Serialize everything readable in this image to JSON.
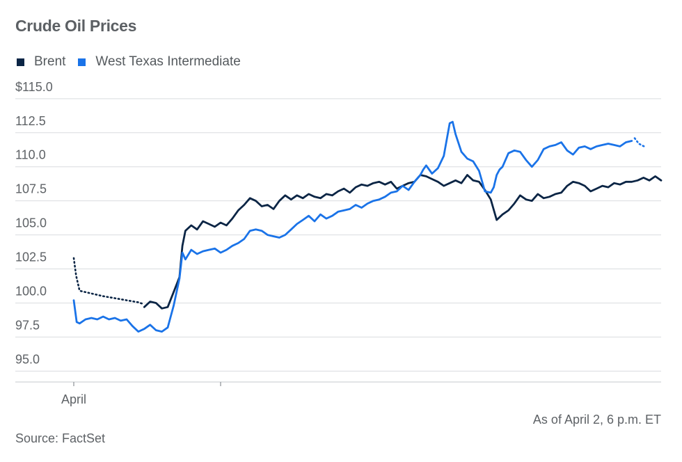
{
  "title": "Crude Oil Prices",
  "legend": [
    {
      "label": "Brent",
      "color": "#0b2545"
    },
    {
      "label": "West Texas Intermediate",
      "color": "#1a73e8"
    }
  ],
  "as_of": "As of April 2, 6 p.m. ET",
  "source": "Source: FactSet",
  "chart_data": {
    "type": "line",
    "title": "Crude Oil Prices",
    "xlabel": "",
    "ylabel": "",
    "ylim": [
      94.2,
      115.3
    ],
    "xlim": [
      0,
      100
    ],
    "grid": true,
    "legend_position": "top-left",
    "y_ticks": [
      {
        "value": 115,
        "label": "$115.0"
      },
      {
        "value": 112.5,
        "label": "112.5"
      },
      {
        "value": 110,
        "label": "110.0"
      },
      {
        "value": 107.5,
        "label": "107.5"
      },
      {
        "value": 105,
        "label": "105.0"
      },
      {
        "value": 102.5,
        "label": "102.5"
      },
      {
        "value": 100,
        "label": "100.0"
      },
      {
        "value": 97.5,
        "label": "97.5"
      },
      {
        "value": 95,
        "label": "95.0"
      }
    ],
    "x_ticks": [
      {
        "x": 0,
        "label": "April"
      },
      {
        "x": 25,
        "label": ""
      }
    ],
    "series": [
      {
        "name": "Brent",
        "color": "#0b2545",
        "dotted_segments": [
          {
            "x": [
              0,
              0.4,
              1,
              3,
              5,
              7,
              9,
              11,
              12
            ],
            "y": [
              103.3,
              102,
              100.9,
              100.7,
              100.5,
              100.35,
              100.2,
              100.05,
              99.9
            ]
          }
        ],
        "x": [
          12,
          13,
          14,
          15,
          16,
          17,
          18,
          18.5,
          19,
          20,
          21,
          22,
          23,
          24,
          25,
          26,
          27,
          28,
          29,
          30,
          31,
          32,
          33,
          34,
          35,
          36,
          37,
          38,
          39,
          40,
          41,
          42,
          43,
          44,
          45,
          46,
          47,
          48,
          49,
          50,
          51,
          52,
          53,
          54,
          55,
          56,
          57,
          58,
          59,
          60,
          61,
          62,
          63,
          64,
          65,
          66,
          67,
          68,
          69,
          70,
          71,
          72,
          73,
          74,
          75,
          76,
          77,
          78,
          79,
          80,
          81,
          82,
          83,
          84,
          85,
          86,
          87,
          88,
          89,
          90,
          91,
          92,
          93,
          94,
          95,
          96,
          97,
          98,
          99,
          100
        ],
        "y": [
          99.7,
          100.1,
          100,
          99.6,
          99.7,
          100.8,
          101.9,
          104.2,
          105.3,
          105.7,
          105.4,
          106,
          105.8,
          105.6,
          105.9,
          105.7,
          106.2,
          106.8,
          107.2,
          107.7,
          107.5,
          107.1,
          107.2,
          106.9,
          107.5,
          107.9,
          107.6,
          107.9,
          107.7,
          108,
          107.8,
          107.7,
          108,
          107.9,
          108.2,
          108.4,
          108.1,
          108.5,
          108.7,
          108.6,
          108.8,
          108.9,
          108.7,
          108.9,
          108.4,
          108.6,
          108.8,
          108.9,
          109.4,
          109.3,
          109.1,
          108.9,
          108.6,
          108.8,
          109,
          108.8,
          109.4,
          109,
          108.9,
          108.3,
          107.6,
          106.1,
          106.5,
          106.8,
          107.3,
          107.9,
          107.6,
          107.5,
          108,
          107.7,
          107.8,
          108,
          108.1,
          108.6,
          108.9,
          108.8,
          108.6,
          108.2,
          108.4,
          108.6,
          108.5,
          108.8,
          108.7,
          108.9,
          108.9,
          109,
          109.2,
          109,
          109.3,
          109.0
        ]
      },
      {
        "name": "West Texas Intermediate",
        "color": "#1a73e8",
        "dotted_segments": [
          {
            "x": [
              95.5,
              96.2,
              97.1
            ],
            "y": [
              112.1,
              111.7,
              111.5
            ]
          }
        ],
        "x": [
          0,
          0.5,
          1,
          2,
          3,
          4,
          5,
          6,
          7,
          8,
          9,
          10,
          11,
          12,
          13,
          14,
          15,
          16,
          17,
          18,
          18.5,
          19,
          20,
          21,
          22,
          23,
          24,
          25,
          26,
          27,
          28,
          29,
          30,
          31,
          32,
          33,
          34,
          35,
          36,
          37,
          38,
          39,
          40,
          41,
          42,
          43,
          44,
          45,
          46,
          47,
          48,
          49,
          50,
          51,
          52,
          53,
          54,
          55,
          56,
          57,
          58,
          59,
          59.5,
          60,
          61,
          62,
          63,
          64,
          64.5,
          65,
          66,
          67,
          68,
          69,
          70,
          71,
          71.5,
          72,
          72.5,
          73,
          74,
          75,
          76,
          77,
          78,
          79,
          80,
          81,
          82,
          83,
          84,
          85,
          86,
          87,
          88,
          89,
          90,
          91,
          92,
          93,
          94,
          95
        ],
        "y": [
          100.2,
          98.6,
          98.5,
          98.8,
          98.9,
          98.8,
          99,
          98.8,
          98.9,
          98.7,
          98.8,
          98.3,
          97.9,
          98.1,
          98.4,
          98.0,
          97.9,
          98.2,
          99.8,
          101.8,
          103.7,
          103.2,
          103.9,
          103.6,
          103.8,
          103.9,
          104.0,
          103.7,
          103.9,
          104.2,
          104.4,
          104.7,
          105.3,
          105.4,
          105.3,
          105.0,
          104.9,
          104.8,
          105.0,
          105.4,
          105.8,
          106.1,
          106.4,
          106.0,
          106.5,
          106.2,
          106.4,
          106.7,
          106.8,
          106.9,
          107.2,
          107.0,
          107.3,
          107.5,
          107.6,
          107.8,
          108.1,
          108.2,
          108.6,
          108.3,
          108.9,
          109.4,
          109.8,
          110.1,
          109.5,
          109.9,
          110.8,
          113.2,
          113.3,
          112.4,
          111.1,
          110.6,
          110.4,
          109.7,
          108.2,
          108.1,
          108.5,
          109.4,
          109.8,
          110.0,
          111.0,
          111.2,
          111.1,
          110.5,
          110.0,
          110.5,
          111.3,
          111.5,
          111.6,
          111.8,
          111.2,
          110.9,
          111.4,
          111.5,
          111.3,
          111.5,
          111.6,
          111.7,
          111.6,
          111.5,
          111.8,
          111.9
        ]
      }
    ]
  }
}
